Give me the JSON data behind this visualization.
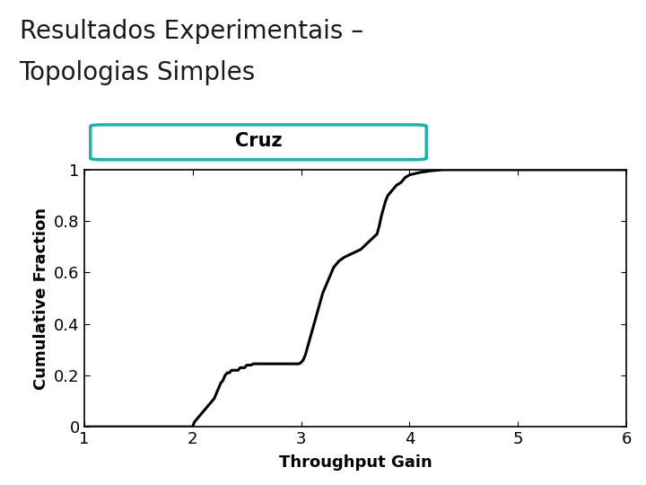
{
  "title_line1": "Resultados Experimentais –",
  "title_line2": "Topologias Simples",
  "subtitle": "Cruz",
  "xlabel": "Throughput Gain",
  "ylabel": "Cumulative Fraction",
  "xlim": [
    1,
    6
  ],
  "ylim": [
    0,
    1
  ],
  "xticks": [
    1,
    2,
    3,
    4,
    5,
    6
  ],
  "yticks": [
    0,
    0.2,
    0.4,
    0.6,
    0.8,
    1
  ],
  "ytick_labels": [
    "0",
    "0.2",
    "0.4",
    "0.6",
    "0.8",
    "1"
  ],
  "line_color": "#000000",
  "line_width": 2.2,
  "background_color": "#ffffff",
  "header_line_color": "#2e6b4f",
  "header_line2_color": "#000000",
  "subtitle_box_color": "#20b2aa",
  "title_fontsize": 20,
  "subtitle_fontsize": 15,
  "axis_label_fontsize": 13,
  "tick_fontsize": 13,
  "cdf_x": [
    1.0,
    2.0,
    2.01,
    2.02,
    2.04,
    2.06,
    2.08,
    2.1,
    2.12,
    2.14,
    2.16,
    2.18,
    2.2,
    2.22,
    2.24,
    2.26,
    2.28,
    2.3,
    2.32,
    2.34,
    2.36,
    2.38,
    2.4,
    2.42,
    2.44,
    2.46,
    2.48,
    2.5,
    2.52,
    2.54,
    2.56,
    2.58,
    2.6,
    2.62,
    2.64,
    2.66,
    2.68,
    2.7,
    2.72,
    2.74,
    2.76,
    2.78,
    2.8,
    2.82,
    2.84,
    2.86,
    2.88,
    2.9,
    2.92,
    2.94,
    2.96,
    2.98,
    3.0,
    3.02,
    3.04,
    3.06,
    3.08,
    3.1,
    3.12,
    3.14,
    3.16,
    3.18,
    3.2,
    3.22,
    3.24,
    3.26,
    3.28,
    3.3,
    3.35,
    3.4,
    3.45,
    3.5,
    3.55,
    3.6,
    3.65,
    3.7,
    3.72,
    3.74,
    3.76,
    3.78,
    3.8,
    3.82,
    3.84,
    3.86,
    3.88,
    3.9,
    3.92,
    3.94,
    3.96,
    3.98,
    4.0,
    4.05,
    4.1,
    4.15,
    4.2,
    4.25,
    4.3,
    6.0
  ],
  "cdf_y": [
    0.0,
    0.0,
    0.01,
    0.02,
    0.03,
    0.04,
    0.05,
    0.06,
    0.07,
    0.08,
    0.09,
    0.1,
    0.11,
    0.13,
    0.15,
    0.17,
    0.18,
    0.2,
    0.21,
    0.21,
    0.22,
    0.22,
    0.22,
    0.22,
    0.23,
    0.23,
    0.23,
    0.24,
    0.24,
    0.24,
    0.245,
    0.245,
    0.245,
    0.245,
    0.245,
    0.245,
    0.245,
    0.245,
    0.245,
    0.245,
    0.245,
    0.245,
    0.245,
    0.245,
    0.245,
    0.245,
    0.245,
    0.245,
    0.245,
    0.245,
    0.245,
    0.245,
    0.25,
    0.26,
    0.28,
    0.31,
    0.34,
    0.37,
    0.4,
    0.43,
    0.46,
    0.49,
    0.52,
    0.54,
    0.56,
    0.58,
    0.6,
    0.62,
    0.645,
    0.66,
    0.67,
    0.68,
    0.69,
    0.71,
    0.73,
    0.75,
    0.78,
    0.82,
    0.85,
    0.88,
    0.9,
    0.91,
    0.92,
    0.93,
    0.94,
    0.945,
    0.95,
    0.96,
    0.97,
    0.975,
    0.98,
    0.985,
    0.99,
    0.993,
    0.996,
    0.998,
    1.0,
    1.0
  ]
}
